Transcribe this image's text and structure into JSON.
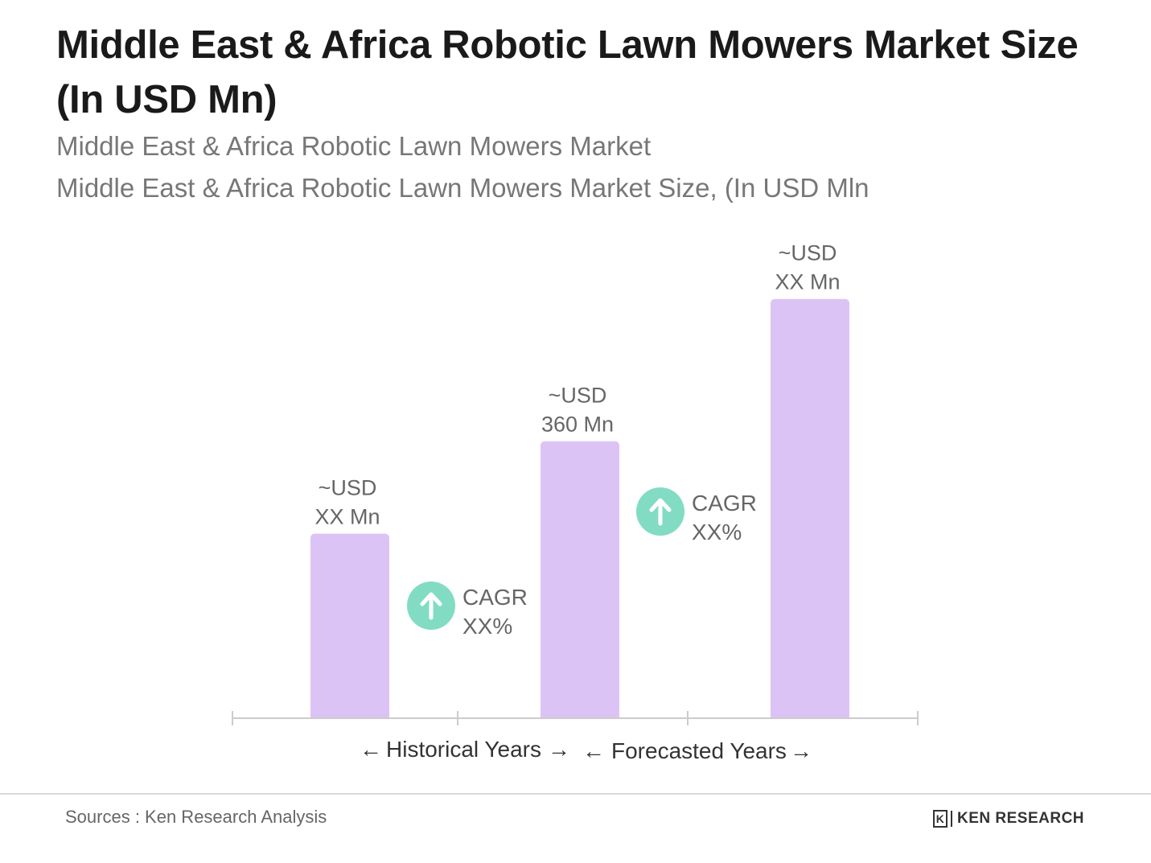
{
  "title": "Middle East & Africa Robotic Lawn Mowers Market Size (In USD Mn)",
  "subtitle_1": "Middle East & Africa Robotic Lawn Mowers Market",
  "subtitle_2": "Middle East & Africa Robotic Lawn Mowers Market Size, (In USD Mln",
  "colors": {
    "bar": "#dcc3f5",
    "axis": "#cccccc",
    "cagr": "#82dcc4",
    "text": "#666666"
  },
  "chart_data": {
    "type": "bar",
    "title": "Middle East & Africa Robotic Lawn Mowers Market Size (In USD Mn)",
    "categories": [
      "",
      "",
      ""
    ],
    "values": [
      240,
      360,
      545
    ],
    "ylim": [
      0,
      620
    ],
    "grid": false,
    "data_labels": [
      {
        "line1": "~USD",
        "line2": "XX Mn"
      },
      {
        "line1": "~USD",
        "line2": "360 Mn"
      },
      {
        "line1": "~USD",
        "line2": "XX Mn"
      }
    ],
    "cagr": [
      {
        "line1": "CAGR",
        "line2": "XX%",
        "icon": "arrow-up-icon"
      },
      {
        "line1": "CAGR",
        "line2": "XX%",
        "icon": "arrow-up-icon"
      }
    ],
    "legend": {
      "historical": "Historical Years",
      "forecasted": "Forecasted Years",
      "arrow_left": "←",
      "arrow_right": "→"
    }
  },
  "footer": {
    "source": "Sources : Ken Research Analysis",
    "logo_mark": "K",
    "logo_text": "KEN RESEARCH"
  }
}
